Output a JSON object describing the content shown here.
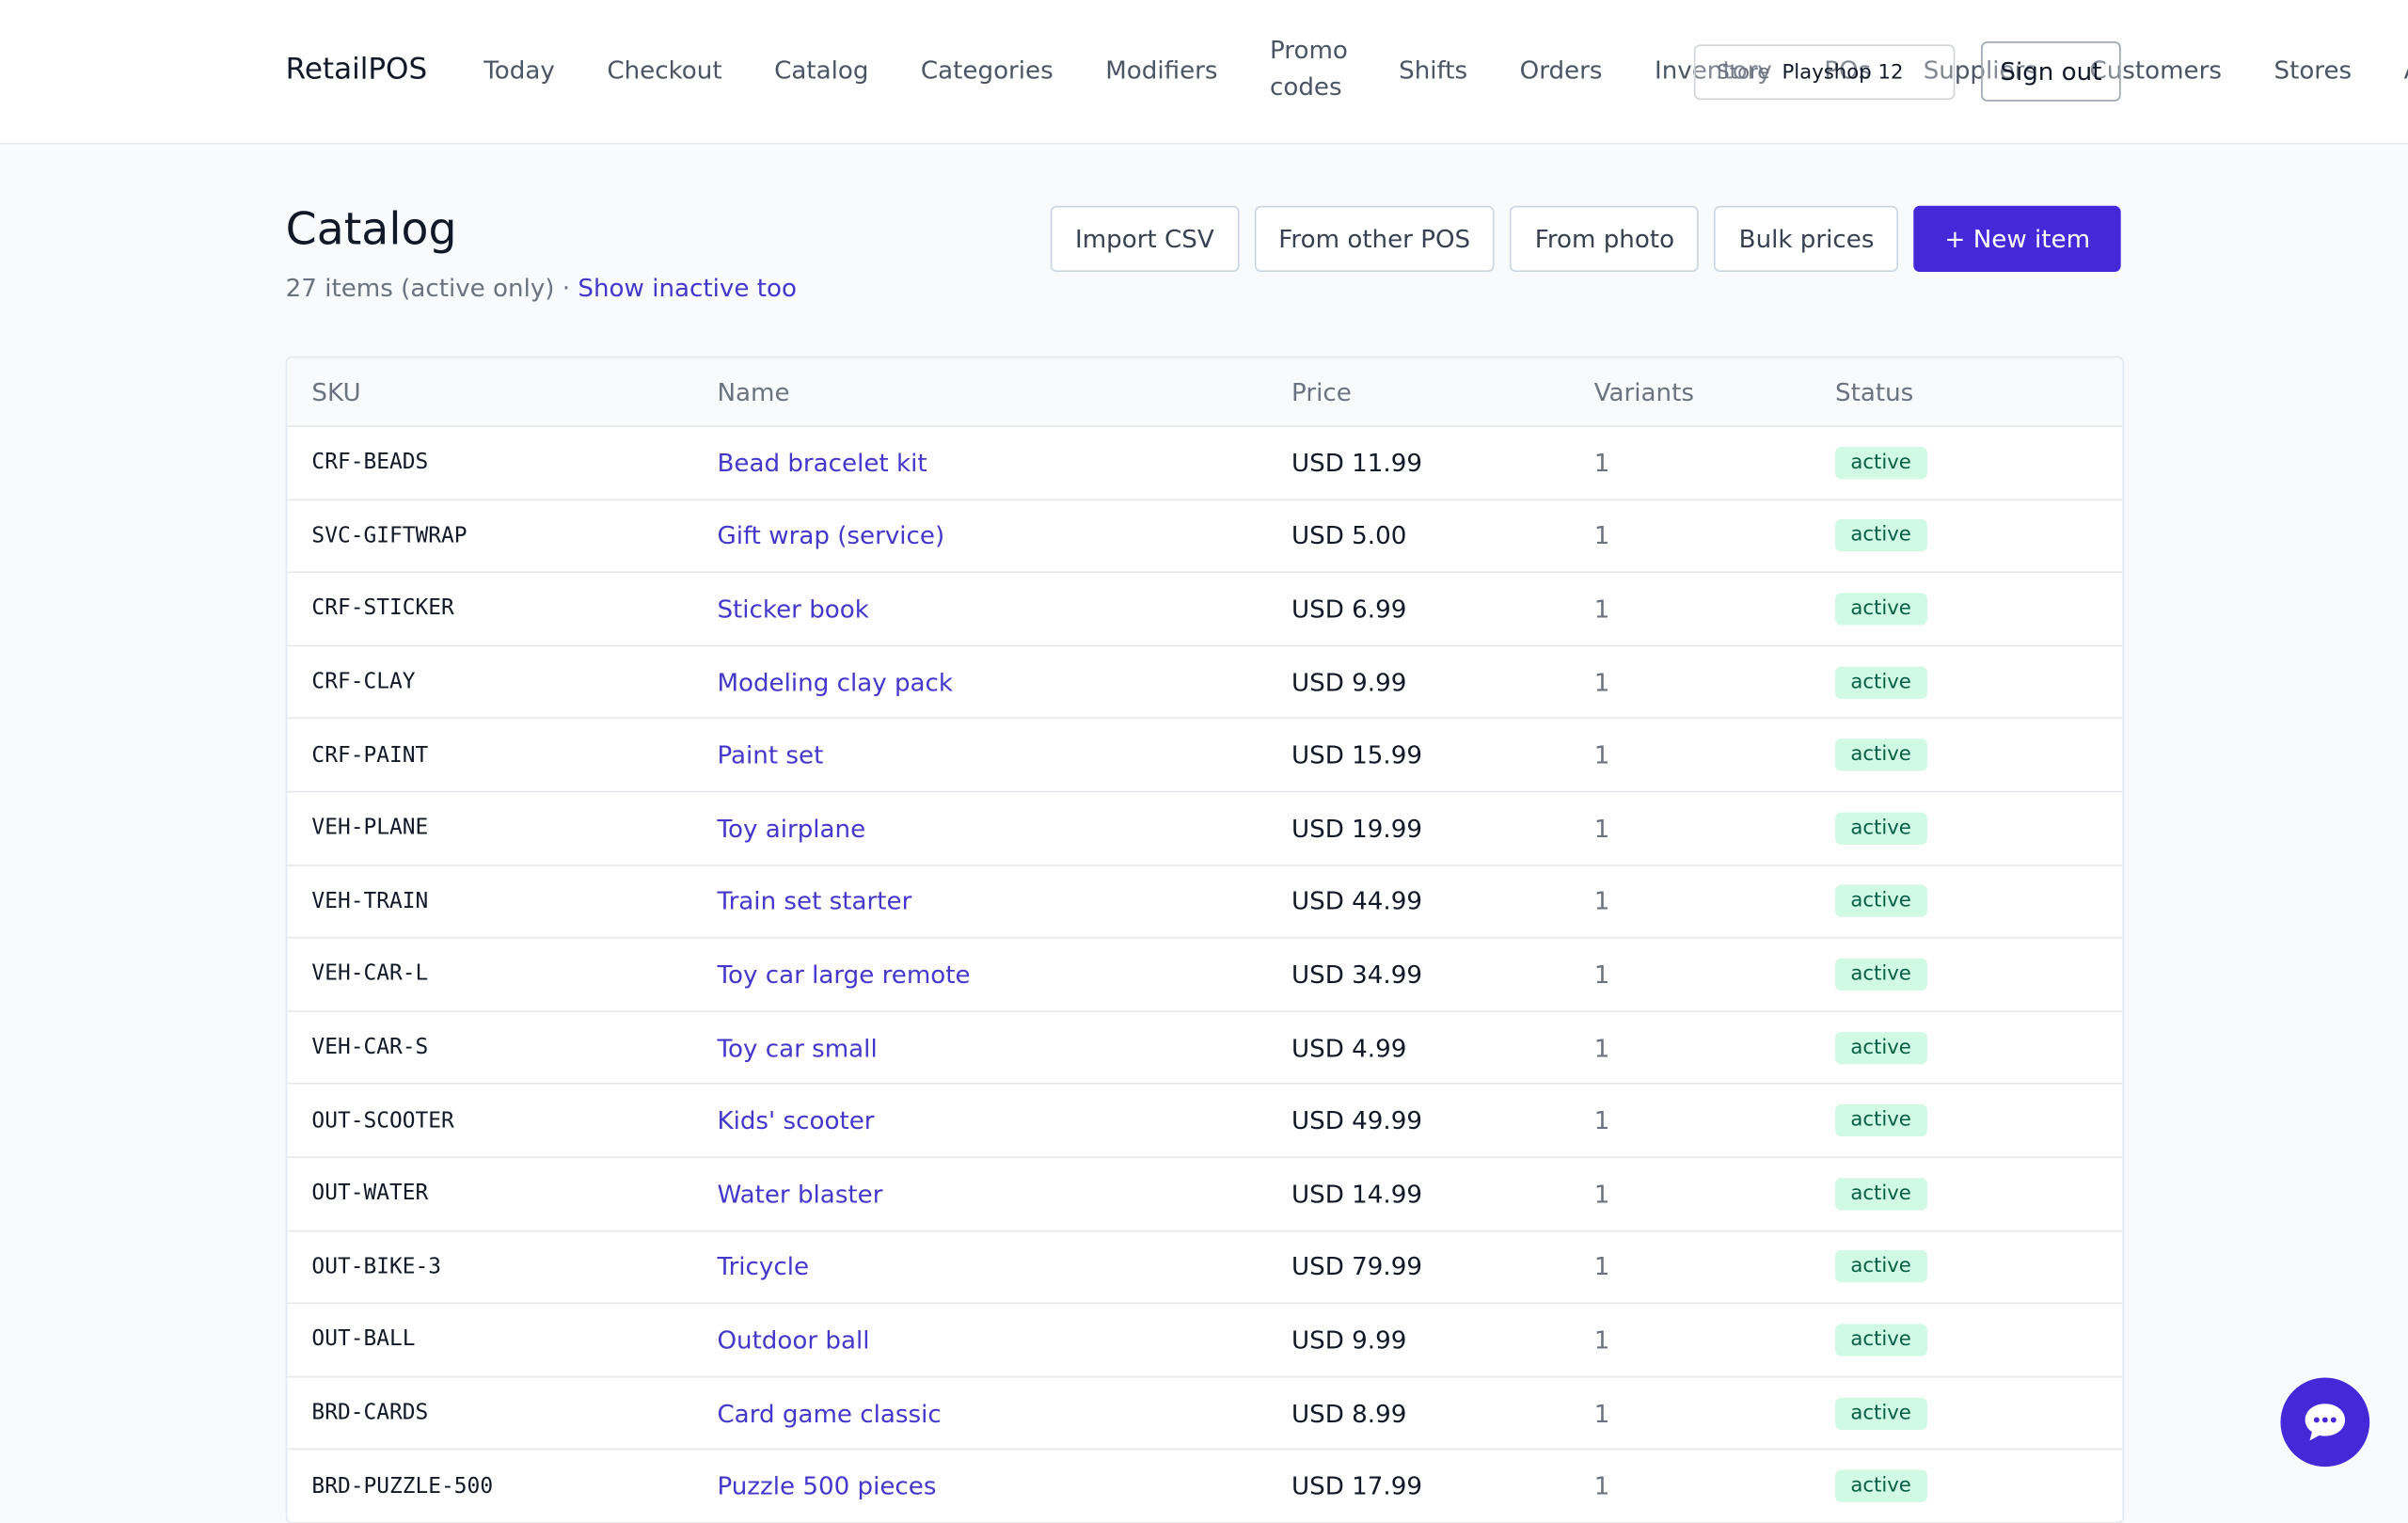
{
  "brand": "RetailPOS",
  "nav": [
    "Today",
    "Checkout",
    "Catalog",
    "Categories",
    "Modifiers",
    "Promo codes",
    "Shifts",
    "Orders",
    "Inventory",
    "POs",
    "Suppliers",
    "Customers",
    "Stores",
    "Audit"
  ],
  "store": {
    "label": "Store",
    "value": "Playshop 12"
  },
  "sign_out": "Sign out",
  "page": {
    "title": "Catalog",
    "count": "27 items (active only) ·",
    "toggle": "Show inactive too"
  },
  "actions": [
    "Import CSV",
    "From other POS",
    "From photo",
    "Bulk prices"
  ],
  "primary_action": "+ New item",
  "table": {
    "columns": [
      "SKU",
      "Name",
      "Price",
      "Variants",
      "Status"
    ],
    "rows": [
      [
        "CRF-BEADS",
        "Bead bracelet kit",
        "USD 11.99",
        "1",
        "active"
      ],
      [
        "SVC-GIFTWRAP",
        "Gift wrap (service)",
        "USD 5.00",
        "1",
        "active"
      ],
      [
        "CRF-STICKER",
        "Sticker book",
        "USD 6.99",
        "1",
        "active"
      ],
      [
        "CRF-CLAY",
        "Modeling clay pack",
        "USD 9.99",
        "1",
        "active"
      ],
      [
        "CRF-PAINT",
        "Paint set",
        "USD 15.99",
        "1",
        "active"
      ],
      [
        "VEH-PLANE",
        "Toy airplane",
        "USD 19.99",
        "1",
        "active"
      ],
      [
        "VEH-TRAIN",
        "Train set starter",
        "USD 44.99",
        "1",
        "active"
      ],
      [
        "VEH-CAR-L",
        "Toy car large remote",
        "USD 34.99",
        "1",
        "active"
      ],
      [
        "VEH-CAR-S",
        "Toy car small",
        "USD 4.99",
        "1",
        "active"
      ],
      [
        "OUT-SCOOTER",
        "Kids' scooter",
        "USD 49.99",
        "1",
        "active"
      ],
      [
        "OUT-WATER",
        "Water blaster",
        "USD 14.99",
        "1",
        "active"
      ],
      [
        "OUT-BIKE-3",
        "Tricycle",
        "USD 79.99",
        "1",
        "active"
      ],
      [
        "OUT-BALL",
        "Outdoor ball",
        "USD 9.99",
        "1",
        "active"
      ],
      [
        "BRD-CARDS",
        "Card game classic",
        "USD 8.99",
        "1",
        "active"
      ],
      [
        "BRD-PUZZLE-500",
        "Puzzle 500 pieces",
        "USD 17.99",
        "1",
        "active"
      ]
    ]
  }
}
